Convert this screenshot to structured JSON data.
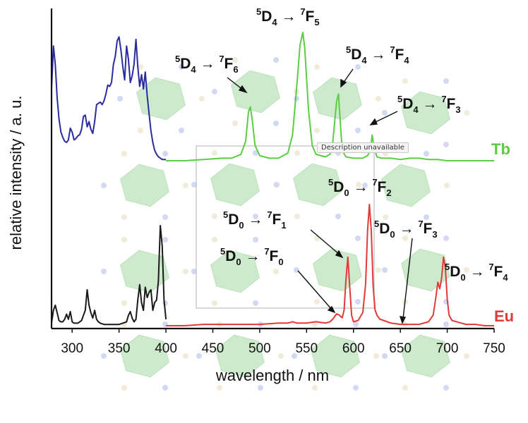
{
  "chart_data": {
    "type": "line",
    "xlabel": "wavelength / nm",
    "ylabel": "relative intensity / a. u.",
    "xlim": [
      278,
      750
    ],
    "xticks": [
      300,
      350,
      400,
      450,
      500,
      550,
      600,
      650,
      700,
      750
    ],
    "grid": false,
    "legend": "right, beside each emission trace",
    "series": [
      {
        "name": "Tb",
        "part": "excitation",
        "color": "#2b2ba0",
        "x": [
          278,
          280,
          282,
          284,
          286,
          288,
          290,
          292,
          294,
          296,
          298,
          300,
          302,
          304,
          306,
          308,
          310,
          312,
          314,
          316,
          318,
          320,
          322,
          324,
          326,
          328,
          330,
          332,
          334,
          336,
          338,
          340,
          342,
          344,
          346,
          348,
          350,
          352,
          354,
          356,
          358,
          360,
          362,
          364,
          366,
          368,
          370,
          372,
          374,
          376,
          378,
          380,
          382,
          384,
          386,
          388,
          390,
          392,
          394,
          396,
          398,
          400
        ],
        "y": [
          0.55,
          0.88,
          0.74,
          0.48,
          0.32,
          0.22,
          0.18,
          0.15,
          0.14,
          0.16,
          0.25,
          0.22,
          0.16,
          0.17,
          0.19,
          0.2,
          0.24,
          0.34,
          0.35,
          0.26,
          0.3,
          0.24,
          0.21,
          0.3,
          0.43,
          0.44,
          0.45,
          0.43,
          0.46,
          0.51,
          0.58,
          0.57,
          0.6,
          0.74,
          0.8,
          0.92,
          0.95,
          0.85,
          0.72,
          0.62,
          0.88,
          0.78,
          0.6,
          0.65,
          0.74,
          0.93,
          0.72,
          0.57,
          0.66,
          0.55,
          0.68,
          0.5,
          0.36,
          0.23,
          0.14,
          0.08,
          0.05,
          0.03,
          0.02,
          0.01,
          0.01,
          0.01
        ]
      },
      {
        "name": "Tb",
        "part": "emission",
        "color": "#5ccc44",
        "x": [
          400,
          420,
          440,
          460,
          470,
          480,
          485,
          488,
          490,
          492,
          495,
          500,
          510,
          520,
          530,
          535,
          540,
          543,
          546,
          548,
          552,
          556,
          560,
          570,
          575,
          578,
          582,
          584,
          586,
          588,
          592,
          600,
          610,
          615,
          618,
          620,
          622,
          625,
          630,
          640,
          650,
          660,
          670,
          680,
          690,
          700,
          710,
          720,
          730,
          740,
          750
        ],
        "y": [
          0.0,
          0.0,
          0.01,
          0.02,
          0.02,
          0.05,
          0.15,
          0.38,
          0.42,
          0.32,
          0.12,
          0.04,
          0.02,
          0.02,
          0.06,
          0.2,
          0.62,
          0.9,
          1.0,
          0.88,
          0.4,
          0.12,
          0.05,
          0.03,
          0.05,
          0.15,
          0.46,
          0.52,
          0.3,
          0.08,
          0.03,
          0.02,
          0.02,
          0.04,
          0.08,
          0.2,
          0.1,
          0.03,
          0.02,
          0.02,
          0.01,
          0.02,
          0.02,
          0.01,
          0.01,
          0.0,
          0.0,
          0.0,
          0.0,
          0.0,
          0.0
        ]
      },
      {
        "name": "Eu",
        "part": "excitation",
        "color": "#1a1a1a",
        "x": [
          278,
          280,
          282,
          284,
          286,
          288,
          290,
          292,
          294,
          296,
          298,
          300,
          302,
          304,
          306,
          310,
          314,
          316,
          318,
          320,
          322,
          324,
          326,
          328,
          330,
          334,
          338,
          342,
          346,
          350,
          354,
          358,
          360,
          362,
          364,
          366,
          368,
          370,
          372,
          374,
          376,
          378,
          380,
          382,
          384,
          386,
          388,
          390,
          392,
          394,
          396,
          398,
          400
        ],
        "y": [
          0.02,
          0.12,
          0.16,
          0.1,
          0.04,
          0.03,
          0.03,
          0.05,
          0.09,
          0.05,
          0.11,
          0.03,
          0.02,
          0.02,
          0.02,
          0.04,
          0.12,
          0.28,
          0.16,
          0.1,
          0.06,
          0.12,
          0.05,
          0.03,
          0.02,
          0.01,
          0.01,
          0.01,
          0.01,
          0.01,
          0.02,
          0.03,
          0.08,
          0.11,
          0.06,
          0.03,
          0.05,
          0.2,
          0.32,
          0.18,
          0.12,
          0.3,
          0.22,
          0.26,
          0.28,
          0.12,
          0.18,
          0.2,
          0.35,
          0.78,
          0.62,
          0.2,
          0.05
        ]
      },
      {
        "name": "Eu",
        "part": "emission",
        "color": "#e23a3a",
        "x": [
          400,
          420,
          440,
          460,
          480,
          500,
          520,
          530,
          535,
          540,
          550,
          560,
          570,
          575,
          578,
          580,
          582,
          585,
          588,
          590,
          592,
          594,
          596,
          598,
          600,
          605,
          610,
          613,
          615,
          617,
          619,
          621,
          623,
          625,
          628,
          632,
          640,
          650,
          660,
          670,
          680,
          685,
          688,
          690,
          692,
          694,
          696,
          698,
          700,
          702,
          705,
          710,
          715,
          720,
          730,
          740,
          750
        ],
        "y": [
          0.0,
          0.0,
          0.01,
          0.01,
          0.01,
          0.01,
          0.02,
          0.02,
          0.03,
          0.02,
          0.02,
          0.03,
          0.02,
          0.03,
          0.05,
          0.07,
          0.09,
          0.08,
          0.06,
          0.12,
          0.35,
          0.52,
          0.3,
          0.08,
          0.03,
          0.04,
          0.1,
          0.32,
          0.72,
          0.92,
          0.72,
          0.3,
          0.12,
          0.08,
          0.05,
          0.04,
          0.02,
          0.01,
          0.01,
          0.01,
          0.03,
          0.08,
          0.22,
          0.33,
          0.28,
          0.36,
          0.52,
          0.44,
          0.2,
          0.08,
          0.04,
          0.03,
          0.02,
          0.01,
          0.01,
          0.0,
          0.0
        ]
      }
    ]
  },
  "annotations": {
    "tb_7f5": {
      "sup1": "5",
      "a": "D",
      "sub1": "4",
      "arrow": "→",
      "sup2": "7",
      "b": "F",
      "sub2": "5"
    },
    "tb_7f6": {
      "sup1": "5",
      "a": "D",
      "sub1": "4",
      "arrow": "→",
      "sup2": "7",
      "b": "F",
      "sub2": "6"
    },
    "tb_7f4": {
      "sup1": "5",
      "a": "D",
      "sub1": "4",
      "arrow": "→",
      "sup2": "7",
      "b": "F",
      "sub2": "4"
    },
    "tb_7f3": {
      "sup1": "5",
      "a": "D",
      "sub1": "4",
      "arrow": "→",
      "sup2": "7",
      "b": "F",
      "sub2": "3"
    },
    "eu_7f2": {
      "sup1": "5",
      "a": "D",
      "sub1": "0",
      "arrow": "→",
      "sup2": "7",
      "b": "F",
      "sub2": "2"
    },
    "eu_7f1": {
      "sup1": "5",
      "a": "D",
      "sub1": "0",
      "arrow": "→",
      "sup2": "7",
      "b": "F",
      "sub2": "1"
    },
    "eu_7f3": {
      "sup1": "5",
      "a": "D",
      "sub1": "0",
      "arrow": "→",
      "sup2": "7",
      "b": "F",
      "sub2": "3"
    },
    "eu_7f0": {
      "sup1": "5",
      "a": "D",
      "sub1": "0",
      "arrow": "→",
      "sup2": "7",
      "b": "F",
      "sub2": "0"
    },
    "eu_7f4": {
      "sup1": "5",
      "a": "D",
      "sub1": "0",
      "arrow": "→",
      "sup2": "7",
      "b": "F",
      "sub2": "4"
    }
  },
  "labels": {
    "tb": "Tb",
    "eu": "Eu"
  },
  "colors": {
    "tb_label": "#5ccc44",
    "eu_label": "#e23a3a",
    "overlay": "#9fd79a"
  },
  "tooltip": "Description unavailable"
}
